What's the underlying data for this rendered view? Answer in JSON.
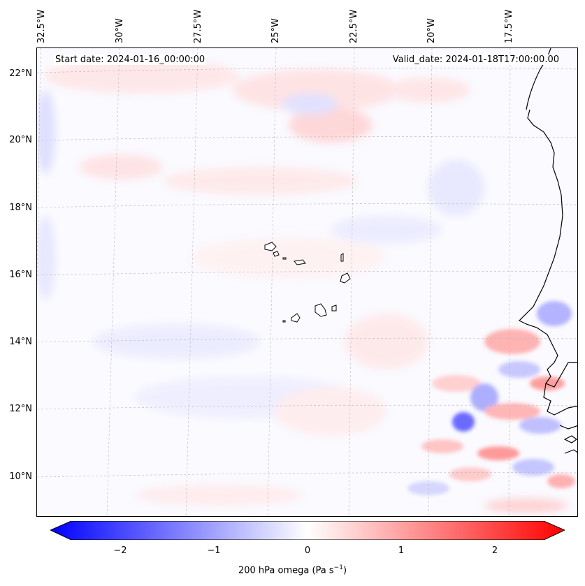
{
  "map": {
    "start_label": "Start date: 2024-01-16_00:00:00",
    "valid_label": "Valid_date: 2024-01-18T17:00:00.00",
    "lon_labels": [
      "32.5°W",
      "30°W",
      "27.5°W",
      "25°W",
      "22.5°W",
      "20°W",
      "17.5°W"
    ],
    "lat_labels": [
      "22°N",
      "20°N",
      "18°N",
      "16°N",
      "14°N",
      "12°N",
      "10°N"
    ],
    "region": "Cabo Verde and West African coast",
    "gridlines": true,
    "coastline_color": "#000000"
  },
  "colorbar": {
    "ticks": [
      "−2",
      "−1",
      "0",
      "1",
      "2"
    ],
    "range": [
      -2.5,
      2.5
    ],
    "label_main": "200 hPa omega (Pa s",
    "label_sup": "−1",
    "label_close": ")",
    "colormap": "bwr",
    "extend": "both",
    "neg_color": "#0000ff",
    "mid_color": "#ffffff",
    "pos_color": "#ff0000"
  }
}
